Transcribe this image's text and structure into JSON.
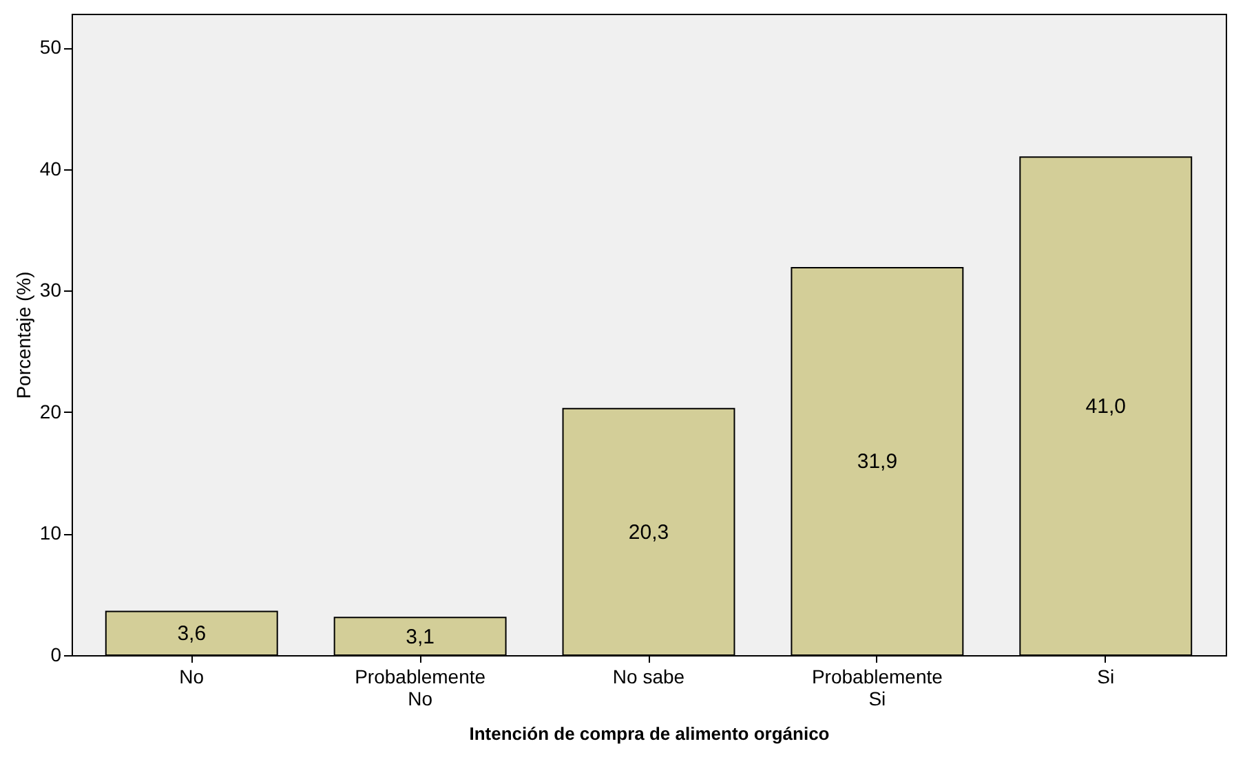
{
  "chart_data": {
    "type": "bar",
    "categories": [
      "No",
      "Probablemente\nNo",
      "No sabe",
      "Probablemente\nSi",
      "Si"
    ],
    "values": [
      3.6,
      3.1,
      20.3,
      31.9,
      41.0
    ],
    "value_labels": [
      "3,6",
      "3,1",
      "20,3",
      "31,9",
      "41,0"
    ],
    "color": "#d3ce98",
    "xlabel": "Intención de compra de alimento orgánico",
    "ylabel": "Porcentaje (%)",
    "ylim": [
      0,
      52.8
    ],
    "yticks": [
      0,
      10,
      20,
      30,
      40,
      50
    ],
    "grid": false
  }
}
